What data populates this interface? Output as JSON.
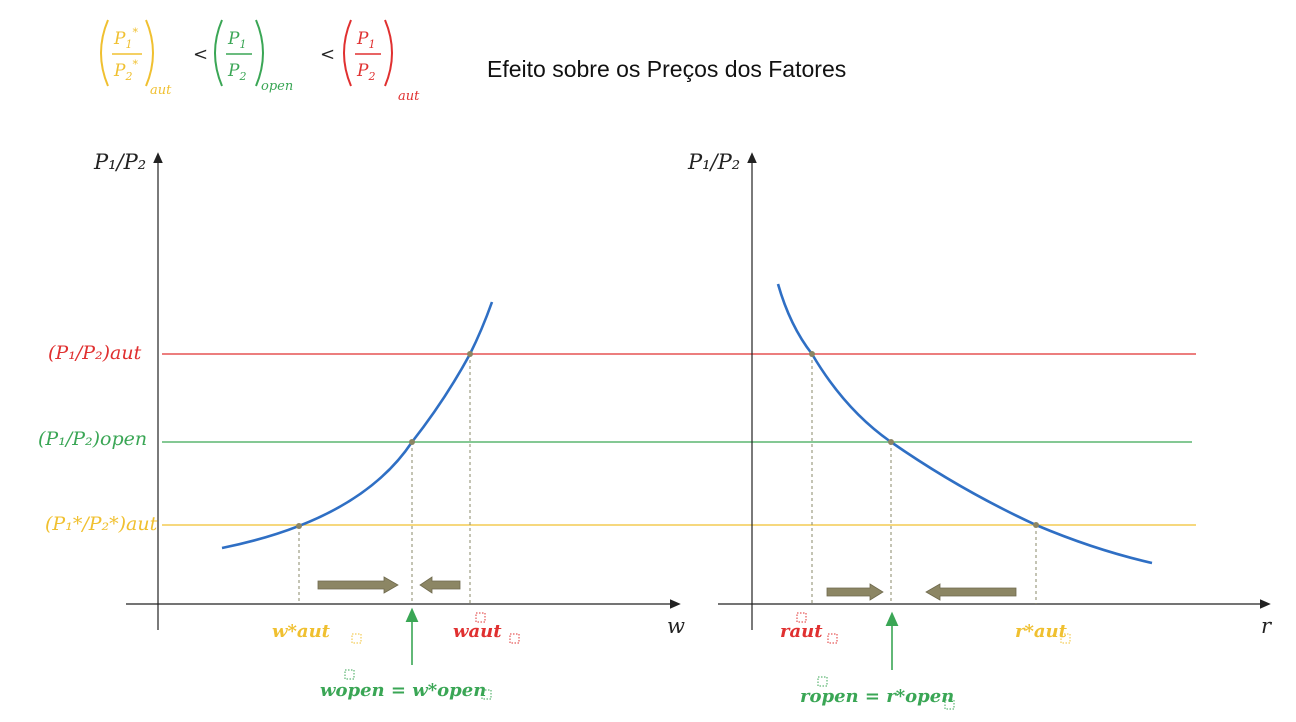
{
  "header": {
    "title": "Efeito sobre os Preços dos Fatores",
    "inequality": {
      "star_num": "P",
      "star_num_sub": "1",
      "star_num_sup": "*",
      "star_den": "P",
      "star_den_sub": "2",
      "star_den_sup": "*",
      "star_sub": "aut",
      "open_num": "P",
      "open_num_sub": "1",
      "open_den": "P",
      "open_den_sub": "2",
      "open_sub": "open",
      "home_num": "P",
      "home_num_sub": "1",
      "home_den": "P",
      "home_den_sub": "2",
      "home_sub": "aut",
      "lt": "<"
    }
  },
  "colors": {
    "aut_home": "#e03030",
    "open": "#3aa655",
    "aut_foreign": "#f0c030",
    "curve": "#2f6fc4",
    "arrow": "#8c8664",
    "axis": "#222222",
    "dashed": "#8a8a6a"
  },
  "left_panel": {
    "y_axis_label": "P₁/P₂",
    "x_axis_label": "w",
    "level_labels": {
      "aut_home": "(P₁/P₂)aut",
      "open": "(P₁/P₂)open",
      "aut_foreign": "(P₁*/P₂*)aut"
    },
    "tick_labels": {
      "w_star_aut": "w*aut",
      "w_aut": "waut",
      "w_open_eq": "wopen = w*open"
    }
  },
  "right_panel": {
    "y_axis_label": "P₁/P₂",
    "x_axis_label": "r",
    "tick_labels": {
      "r_aut": "raut",
      "r_star_aut": "r*aut",
      "r_open_eq": "ropen = r*open"
    }
  }
}
